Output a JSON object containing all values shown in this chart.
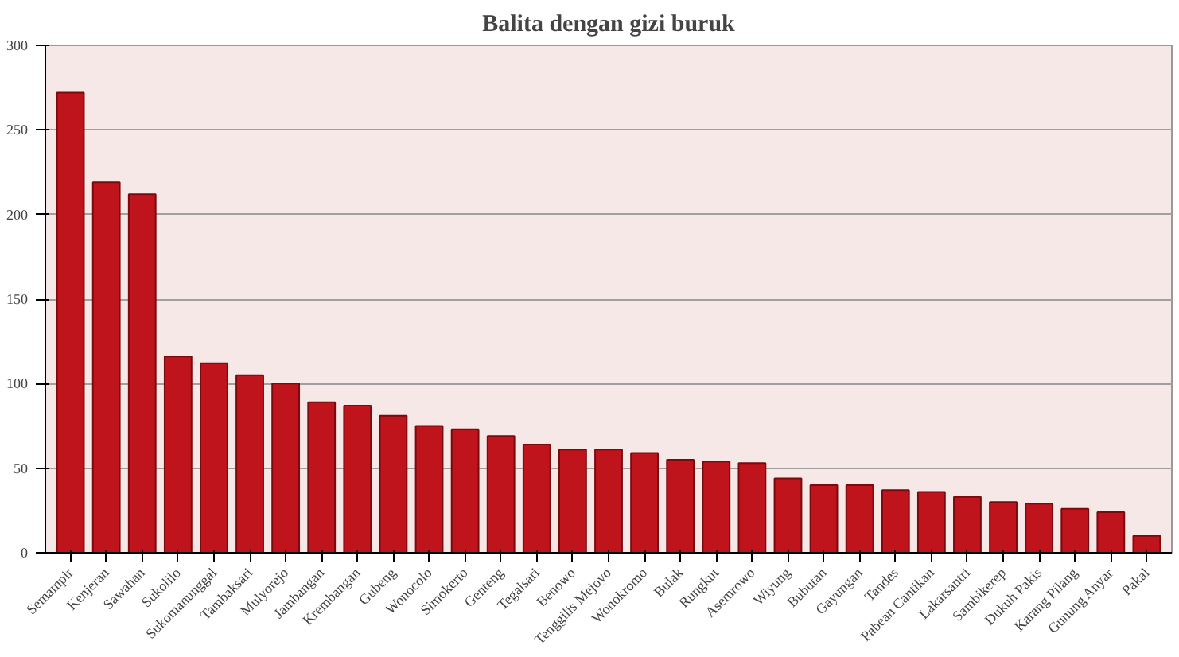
{
  "chart_data": {
    "type": "bar",
    "title": "Balita dengan gizi buruk",
    "categories": [
      "Semampir",
      "Kenjeran",
      "Sawahan",
      "Sukolilo",
      "Sukomanunggal",
      "Tambaksari",
      "Mulyorejo",
      "Jambangan",
      "Krembangan",
      "Gubeng",
      "Wonocolo",
      "Simokerto",
      "Genteng",
      "Tegalsari",
      "Benowo",
      "Tenggilis Mejoyo",
      "Wonokromo",
      "Bulak",
      "Rungkut",
      "Asemrowo",
      "Wiyung",
      "Bubutan",
      "Gayungan",
      "Tandes",
      "Pabean Cantikan",
      "Lakarsantri",
      "Sambikerep",
      "Dukuh Pakis",
      "Karang Pilang",
      "Gunung Anyar",
      "Pakal"
    ],
    "values": [
      272,
      219,
      212,
      116,
      112,
      105,
      100,
      89,
      87,
      81,
      75,
      73,
      69,
      64,
      61,
      61,
      59,
      55,
      54,
      53,
      44,
      40,
      40,
      37,
      36,
      33,
      30,
      29,
      26,
      24,
      10
    ],
    "color": "#c0141c",
    "ylim": [
      0,
      300
    ],
    "yticks": [
      0,
      50,
      100,
      150,
      200,
      250,
      300
    ],
    "grid": "y"
  }
}
